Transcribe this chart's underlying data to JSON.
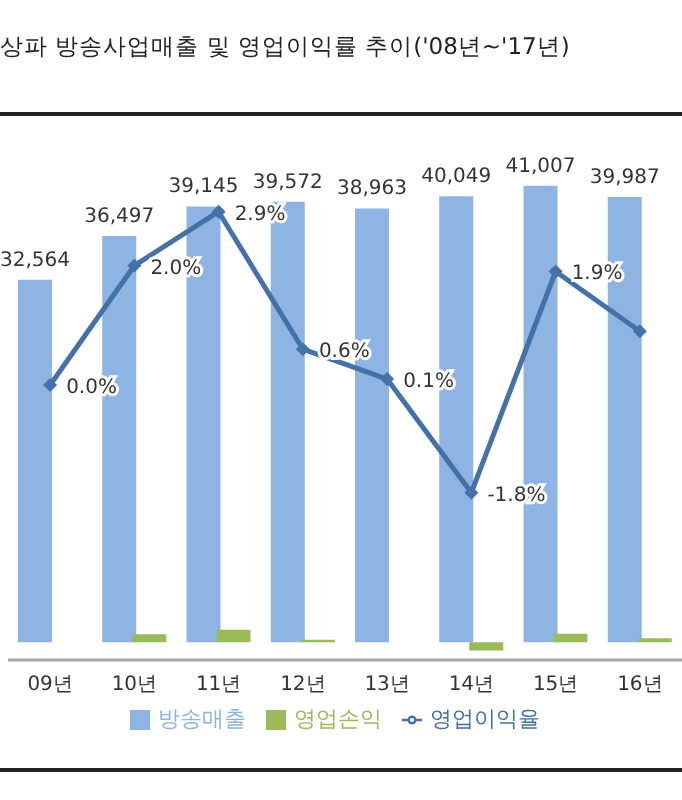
{
  "chart_data": {
    "type": "bar",
    "title": "상파 방송사업매출 및 영업이익률 추이('08년~'17년)",
    "categories": [
      "09년",
      "10년",
      "11년",
      "12년",
      "13년",
      "14년",
      "15년",
      "16년"
    ],
    "series": [
      {
        "name": "방송매출",
        "color": "#8db4e2",
        "values": [
          32564,
          36497,
          39145,
          39572,
          38963,
          40049,
          41007,
          39987
        ],
        "value_labels": [
          "32,564",
          "36,497",
          "39,145",
          "39,572",
          "38,963",
          "40,049",
          "41,007",
          "39,987"
        ]
      },
      {
        "name": "영업손익",
        "color": "#9bbb59",
        "values": [
          0,
          730,
          1140,
          240,
          null,
          -720,
          780,
          360
        ]
      },
      {
        "name": "영업이익율",
        "type": "line",
        "axis": "y2",
        "color": "#4472a8",
        "values": [
          0.0,
          2.0,
          2.9,
          0.6,
          0.1,
          -1.8,
          1.9,
          0.9
        ],
        "value_labels": [
          "0.0%",
          "2.0%",
          "2.9%",
          "0.6%",
          "0.1%",
          "-1.8%",
          "1.9%",
          null
        ]
      }
    ],
    "tick_labels": "x",
    "marker": "diamond",
    "legend": "bottom",
    "grid": false
  }
}
